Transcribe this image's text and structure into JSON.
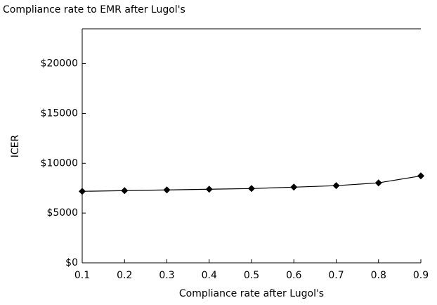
{
  "chart_data": {
    "type": "line",
    "title": "Compliance rate to EMR after Lugol's",
    "xlabel": "Compliance rate after Lugol's",
    "ylabel": "ICER",
    "x": [
      0.1,
      0.2,
      0.3,
      0.4,
      0.5,
      0.6,
      0.7,
      0.8,
      0.9
    ],
    "series": [
      {
        "name": "ICER",
        "color": "#000000",
        "values": [
          7180,
          7250,
          7320,
          7390,
          7460,
          7600,
          7750,
          8030,
          8730
        ]
      }
    ],
    "xlim": [
      0.1,
      0.9
    ],
    "xticks": [
      0.1,
      0.2,
      0.3,
      0.4,
      0.5,
      0.6,
      0.7,
      0.8,
      0.9
    ],
    "ylim": [
      0,
      23500
    ],
    "yticks": [
      {
        "value": 0,
        "label": "$0"
      },
      {
        "value": 5000,
        "label": "$5000"
      },
      {
        "value": 10000,
        "label": "$10000"
      },
      {
        "value": 15000,
        "label": "$15000"
      },
      {
        "value": 20000,
        "label": "$20000"
      }
    ],
    "grid": false
  }
}
